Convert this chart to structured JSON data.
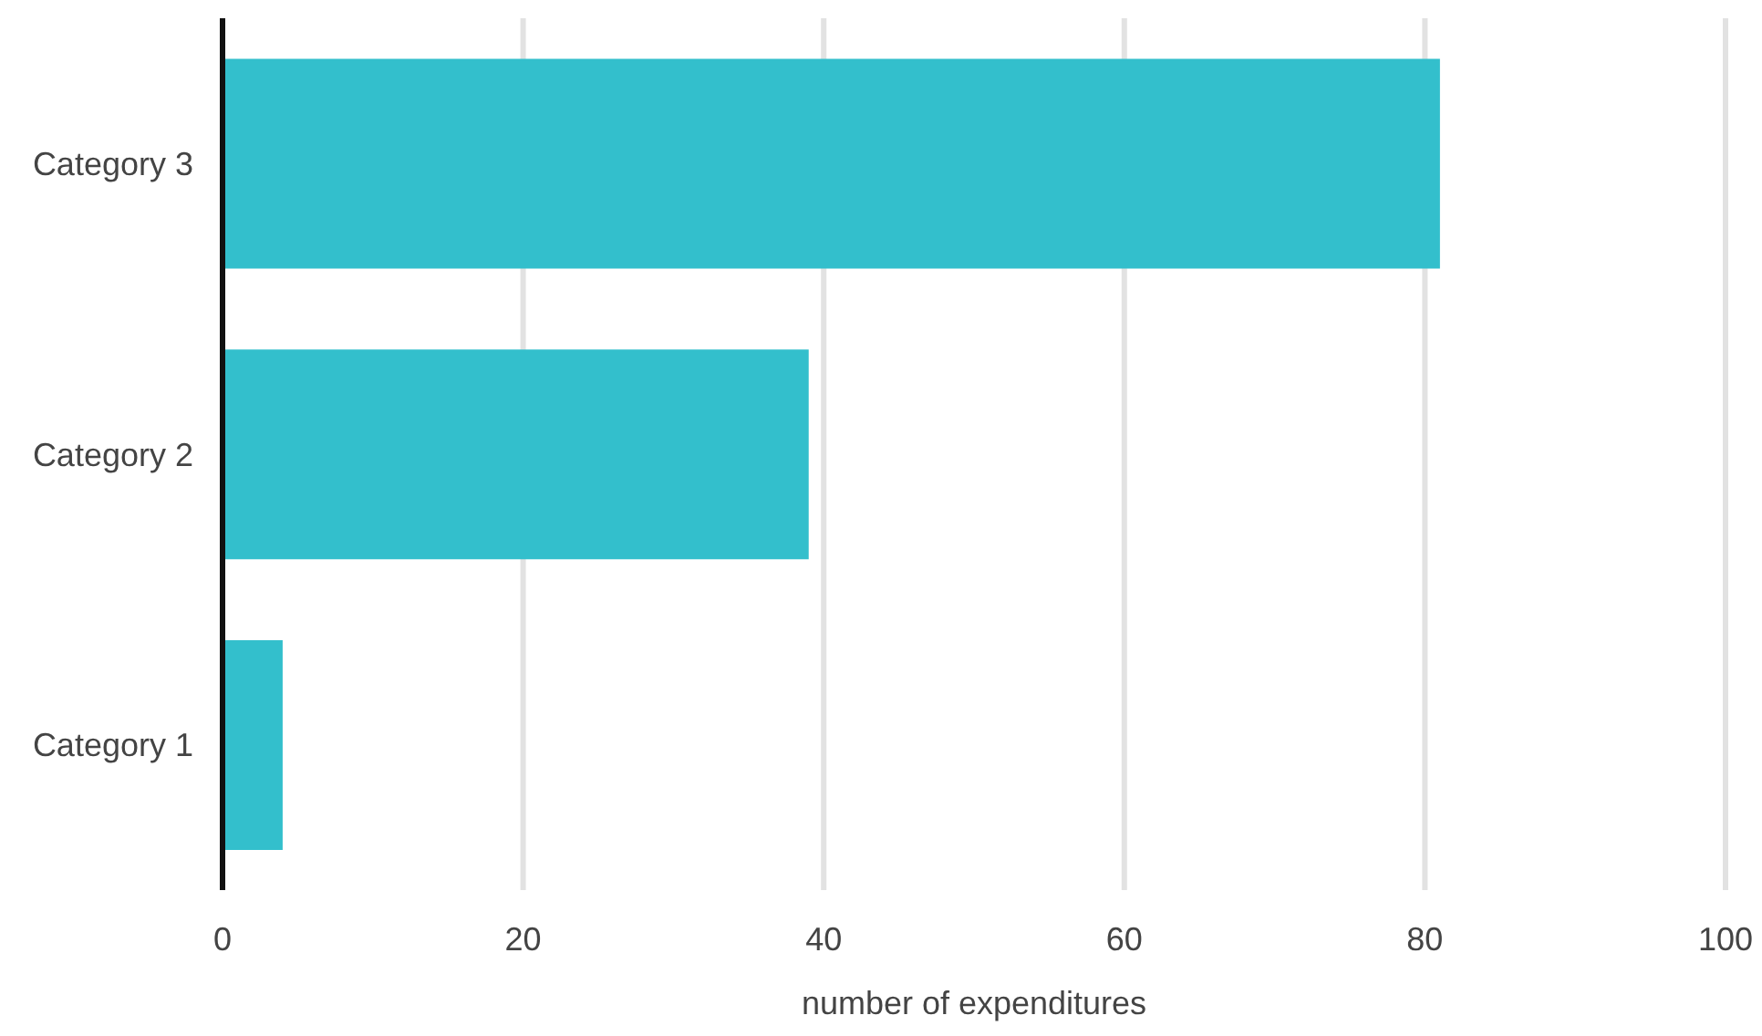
{
  "chart_data": {
    "type": "bar",
    "orientation": "horizontal",
    "xlabel": "number of expenditures",
    "categories": [
      "Category 3",
      "Category 2",
      "Category 1"
    ],
    "values": [
      81,
      39,
      4
    ],
    "color": "#33bfcc",
    "xlim": [
      0,
      100
    ],
    "xticks": [
      0,
      20,
      40,
      60,
      80,
      100
    ],
    "grid": "x"
  }
}
